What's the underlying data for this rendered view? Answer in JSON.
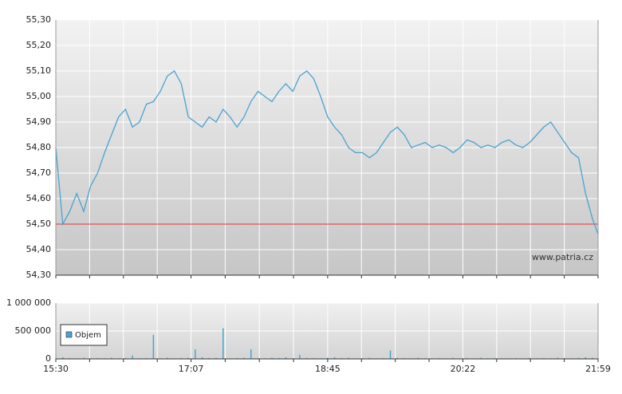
{
  "chart_data": [
    {
      "type": "line",
      "x": [
        "15:30",
        "15:35",
        "15:40",
        "15:45",
        "15:50",
        "15:55",
        "16:00",
        "16:05",
        "16:10",
        "16:15",
        "16:20",
        "16:25",
        "16:30",
        "16:35",
        "16:40",
        "16:45",
        "16:50",
        "16:55",
        "17:00",
        "17:05",
        "17:10",
        "17:15",
        "17:20",
        "17:25",
        "17:30",
        "17:35",
        "17:40",
        "17:45",
        "17:50",
        "17:55",
        "18:00",
        "18:05",
        "18:10",
        "18:15",
        "18:20",
        "18:25",
        "18:30",
        "18:35",
        "18:40",
        "18:45",
        "18:50",
        "18:55",
        "19:00",
        "19:05",
        "19:10",
        "19:15",
        "19:20",
        "19:25",
        "19:30",
        "19:35",
        "19:40",
        "19:45",
        "19:50",
        "19:55",
        "20:00",
        "20:05",
        "20:10",
        "20:15",
        "20:20",
        "20:25",
        "20:30",
        "20:35",
        "20:40",
        "20:45",
        "20:50",
        "20:55",
        "21:00",
        "21:05",
        "21:10",
        "21:15",
        "21:20",
        "21:25",
        "21:30",
        "21:35",
        "21:40",
        "21:45",
        "21:50",
        "21:55",
        "21:59"
      ],
      "values": [
        54.8,
        54.5,
        54.55,
        54.62,
        54.55,
        54.65,
        54.7,
        54.78,
        54.85,
        54.92,
        54.95,
        54.88,
        54.9,
        54.97,
        54.98,
        55.02,
        55.08,
        55.1,
        55.05,
        54.92,
        54.9,
        54.88,
        54.92,
        54.9,
        54.95,
        54.92,
        54.88,
        54.92,
        54.98,
        55.02,
        55.0,
        54.98,
        55.02,
        55.05,
        55.02,
        55.08,
        55.1,
        55.07,
        55.0,
        54.92,
        54.88,
        54.85,
        54.8,
        54.78,
        54.78,
        54.76,
        54.78,
        54.82,
        54.86,
        54.88,
        54.85,
        54.8,
        54.81,
        54.82,
        54.8,
        54.81,
        54.8,
        54.78,
        54.8,
        54.83,
        54.82,
        54.8,
        54.81,
        54.8,
        54.82,
        54.83,
        54.81,
        54.8,
        54.82,
        54.85,
        54.88,
        54.9,
        54.86,
        54.82,
        54.78,
        54.76,
        54.62,
        54.52,
        54.46
      ],
      "color": "#4aa3d0",
      "xlim": [
        "15:30",
        "21:59"
      ],
      "xticks": [
        "15:30",
        "17:07",
        "18:45",
        "20:22",
        "21:59"
      ],
      "ylim": [
        54.3,
        55.3
      ],
      "yticks": [
        {
          "value": 54.3,
          "label": "54,30"
        },
        {
          "value": 54.4,
          "label": "54,40"
        },
        {
          "value": 54.5,
          "label": "54,50"
        },
        {
          "value": 54.6,
          "label": "54,60"
        },
        {
          "value": 54.7,
          "label": "54,70"
        },
        {
          "value": 54.8,
          "label": "54,80"
        },
        {
          "value": 54.9,
          "label": "54,90"
        },
        {
          "value": 55.0,
          "label": "55,00"
        },
        {
          "value": 55.1,
          "label": "55,10"
        },
        {
          "value": 55.2,
          "label": "55,20"
        },
        {
          "value": 55.3,
          "label": "55,30"
        }
      ],
      "reference_line": {
        "value": 54.5,
        "color": "#e03030"
      },
      "watermark": "www.patria.cz",
      "grid": true
    },
    {
      "type": "bar",
      "x": [
        "15:30",
        "15:35",
        "15:40",
        "15:45",
        "15:50",
        "15:55",
        "16:00",
        "16:05",
        "16:10",
        "16:15",
        "16:20",
        "16:25",
        "16:30",
        "16:35",
        "16:40",
        "16:45",
        "16:50",
        "16:55",
        "17:00",
        "17:05",
        "17:10",
        "17:15",
        "17:20",
        "17:25",
        "17:30",
        "17:35",
        "17:40",
        "17:45",
        "17:50",
        "17:55",
        "18:00",
        "18:05",
        "18:10",
        "18:15",
        "18:20",
        "18:25",
        "18:30",
        "18:35",
        "18:40",
        "18:45",
        "18:50",
        "18:55",
        "19:00",
        "19:05",
        "19:10",
        "19:15",
        "19:20",
        "19:25",
        "19:30",
        "19:35",
        "19:40",
        "19:45",
        "19:50",
        "19:55",
        "20:00",
        "20:05",
        "20:10",
        "20:15",
        "20:20",
        "20:25",
        "20:30",
        "20:35",
        "20:40",
        "20:45",
        "20:50",
        "20:55",
        "21:00",
        "21:05",
        "21:10",
        "21:15",
        "21:20",
        "21:25",
        "21:30",
        "21:35",
        "21:40",
        "21:45",
        "21:50",
        "21:55",
        "21:59"
      ],
      "series": [
        {
          "name": "Objem",
          "color": "#4aa3d0",
          "values": [
            20000,
            30000,
            15000,
            10000,
            20000,
            10000,
            15000,
            10000,
            20000,
            10000,
            15000,
            60000,
            10000,
            15000,
            430000,
            10000,
            20000,
            10000,
            15000,
            20000,
            170000,
            30000,
            15000,
            20000,
            550000,
            10000,
            15000,
            20000,
            170000,
            15000,
            10000,
            20000,
            15000,
            30000,
            10000,
            70000,
            20000,
            15000,
            10000,
            20000,
            30000,
            15000,
            20000,
            10000,
            15000,
            20000,
            10000,
            15000,
            150000,
            20000,
            15000,
            10000,
            20000,
            10000,
            10000,
            15000,
            10000,
            20000,
            10000,
            15000,
            10000,
            20000,
            10000,
            15000,
            10000,
            10000,
            15000,
            10000,
            20000,
            10000,
            15000,
            10000,
            20000,
            15000,
            10000,
            20000,
            30000,
            20000,
            15000
          ]
        }
      ],
      "xlim": [
        "15:30",
        "21:59"
      ],
      "xticks": [
        "15:30",
        "17:07",
        "18:45",
        "20:22",
        "21:59"
      ],
      "ylim": [
        0,
        1000000
      ],
      "yticks": [
        0,
        {
          "value": 500000,
          "label": "500 000"
        },
        {
          "value": 1000000,
          "label": "1 000 000"
        }
      ],
      "grid": true
    }
  ]
}
